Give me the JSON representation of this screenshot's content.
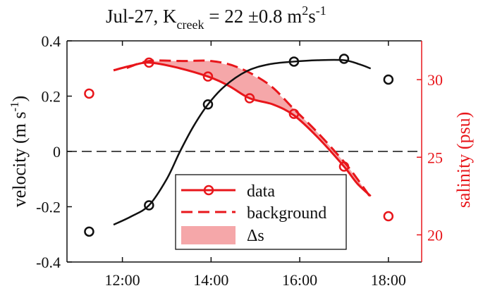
{
  "chart_data": {
    "type": "line",
    "title": {
      "prefix": "Jul-27, K",
      "subscript": "creek",
      "value": " = 22 ±0.8 m",
      "sup1": "2",
      "unit2": "s",
      "sup2": "-1"
    },
    "x_axis": {
      "ticks": [
        "12:00",
        "14:00",
        "16:00",
        "18:00"
      ],
      "tick_hours": [
        12,
        14,
        16,
        18
      ],
      "range_hours": [
        10.75,
        18.75
      ]
    },
    "left_axis": {
      "label_main": "velocity (m s",
      "label_sup": "-1",
      "label_close": ")",
      "ticks": [
        "0.4",
        "0.2",
        "0",
        "-0.2",
        "-0.4"
      ],
      "tick_values": [
        0.4,
        0.2,
        0,
        -0.2,
        -0.4
      ],
      "range": [
        -0.4,
        0.4
      ]
    },
    "right_axis": {
      "label": "salinity (psu)",
      "ticks": [
        "30",
        "25",
        "20"
      ],
      "tick_values": [
        30,
        25,
        20
      ],
      "range": [
        18.25,
        32.5
      ],
      "color": "#e8161b"
    },
    "velocity": {
      "color": "#111111",
      "points_x": [
        11.25,
        12.6,
        13.93,
        15.87,
        17.0,
        18.0
      ],
      "points_y": [
        -0.29,
        -0.195,
        0.17,
        0.325,
        0.335,
        0.26
      ],
      "fit_x": [
        11.8,
        12.2,
        12.6,
        13.0,
        13.3,
        13.6,
        13.93,
        14.3,
        14.8,
        15.3,
        15.87,
        16.4,
        17.0,
        17.35,
        17.6
      ],
      "fit_y": [
        -0.265,
        -0.235,
        -0.195,
        -0.1,
        0.0,
        0.09,
        0.17,
        0.235,
        0.29,
        0.315,
        0.325,
        0.33,
        0.33,
        0.315,
        0.3
      ]
    },
    "salinity_data": {
      "points_x": [
        11.25,
        12.6,
        13.93,
        14.87,
        15.87,
        17.0,
        18.0
      ],
      "points_y": [
        29.1,
        31.1,
        30.2,
        28.8,
        27.8,
        24.4,
        21.2
      ],
      "line_x": [
        11.8,
        12.2,
        12.6,
        13.2,
        13.93,
        14.4,
        14.87,
        15.4,
        15.87,
        16.4,
        17.0,
        17.3,
        17.6
      ],
      "line_y": [
        30.6,
        30.9,
        31.1,
        30.8,
        30.2,
        29.6,
        28.8,
        28.4,
        27.7,
        26.3,
        24.4,
        23.3,
        22.5
      ]
    },
    "salinity_background": {
      "x": [
        12.1,
        12.6,
        13.4,
        14.0,
        14.6,
        15.3,
        15.87,
        16.4,
        17.0,
        17.3,
        17.6
      ],
      "y": [
        30.75,
        31.2,
        31.2,
        31.2,
        30.8,
        29.7,
        28.1,
        26.6,
        24.7,
        23.6,
        22.4
      ]
    },
    "zero_line": 0,
    "legend": {
      "position": "lower-center",
      "entries": [
        "data",
        "background",
        "Δs"
      ]
    },
    "colors": {
      "red": "#e8161b",
      "fill": "#f5a7a9",
      "black": "#111111"
    }
  }
}
